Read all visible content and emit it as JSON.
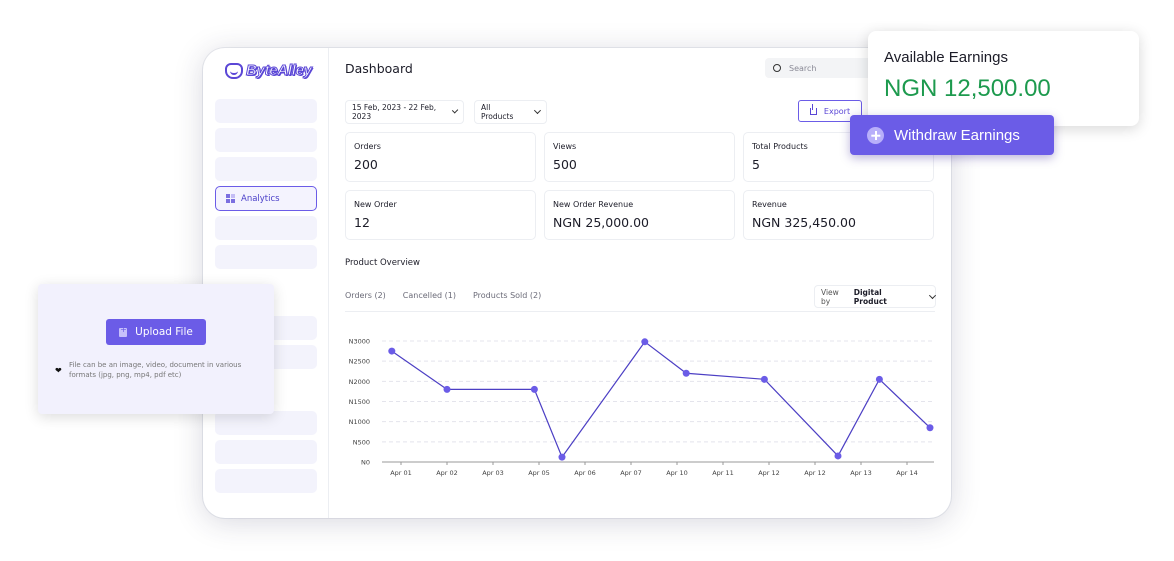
{
  "brand": {
    "name": "ByteAlley",
    "accent": "#6b5ce7",
    "success": "#1d9a4e"
  },
  "sidebar": {
    "active_item": {
      "label": "Analytics",
      "icon": "grid-icon"
    }
  },
  "header": {
    "title": "Dashboard",
    "search_placeholder": "Search"
  },
  "filters": {
    "date_range": "15 Feb, 2023 - 22 Feb, 2023",
    "products": "All Products",
    "export_label": "Export"
  },
  "stats": [
    {
      "label": "Orders",
      "value": "200"
    },
    {
      "label": "Views",
      "value": "500"
    },
    {
      "label": "Total Products",
      "value": "5"
    },
    {
      "label": "New Order",
      "value": "12"
    },
    {
      "label": "New Order Revenue",
      "value": "NGN 25,000.00"
    },
    {
      "label": "Revenue",
      "value": "NGN 325,450.00"
    }
  ],
  "overview": {
    "title": "Product Overview",
    "tabs": [
      "Orders (2)",
      "Cancelled (1)",
      "Products Sold (2)"
    ],
    "view_by_prefix": "View by",
    "view_by_value": "Digital Product"
  },
  "chart_data": {
    "type": "line",
    "title": "Product Overview",
    "xlabel": "",
    "ylabel": "",
    "y_tick_labels": [
      "N0",
      "N500",
      "N1000",
      "N1500",
      "N2000",
      "N2500",
      "N3000"
    ],
    "ylim": [
      0,
      3000
    ],
    "grid": true,
    "x_tick_labels": [
      "Apr 01",
      "Apr 02",
      "Apr 03",
      "Apr 05",
      "Apr 06",
      "Apr 07",
      "Apr 10",
      "Apr 11",
      "Apr 12",
      "Apr 12",
      "Apr 13",
      "Apr 14"
    ],
    "series": [
      {
        "name": "Orders",
        "color": "#4c3fc4",
        "x": [
          -0.2,
          1,
          2.9,
          3.5,
          5.3,
          6.2,
          7.9,
          9.5,
          10.4,
          11.5
        ],
        "values": [
          2750,
          1800,
          1800,
          120,
          2980,
          2200,
          2050,
          150,
          2050,
          850
        ]
      }
    ]
  },
  "earnings": {
    "label": "Available Earnings",
    "value": "NGN 12,500.00",
    "withdraw_label": "Withdraw Earnings"
  },
  "upload": {
    "button_label": "Upload File",
    "note": "File can be an image, video, document in various formats (jpg, png, mp4, pdf etc)"
  }
}
